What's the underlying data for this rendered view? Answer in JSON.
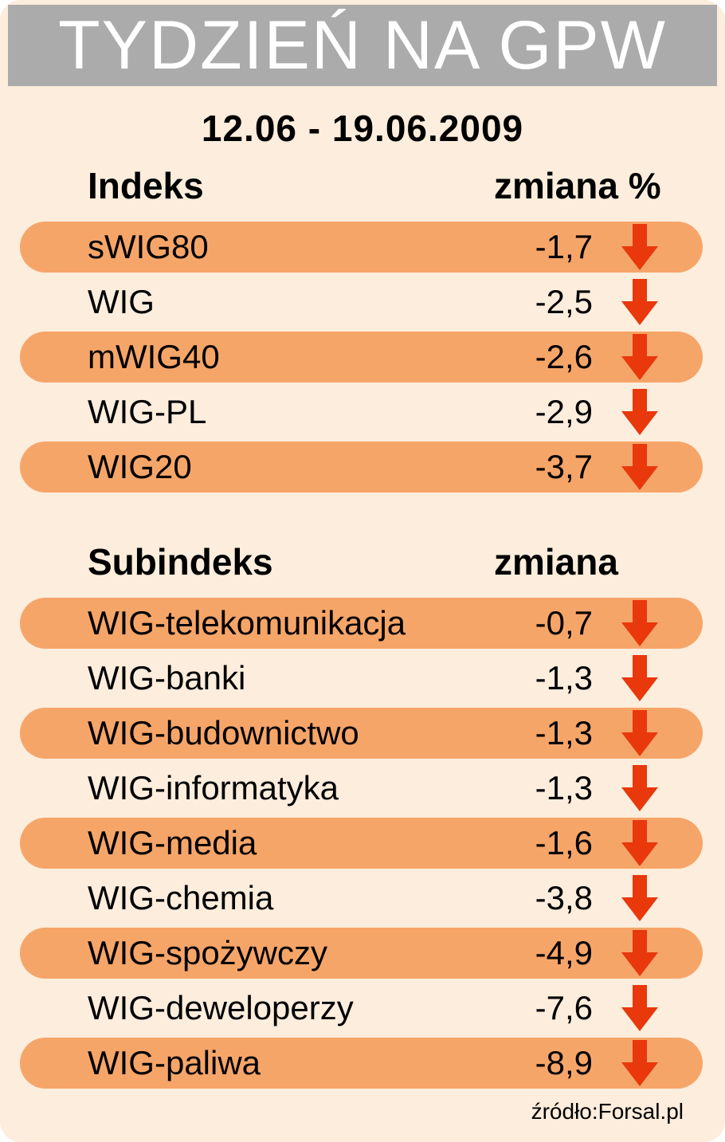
{
  "title": "TYDZIEŃ NA GPW",
  "date_range": "12.06 - 19.06.2009",
  "source": "źródło:Forsal.pl",
  "colors": {
    "background": "#FCEDDC",
    "pill": "#F6A569",
    "arrow": "#E8380C",
    "title_bar": "#ABABAB",
    "title_text": "#FFFFFF",
    "text": "#000000"
  },
  "sections": [
    {
      "header_left": "Indeks",
      "header_right": "zmiana %",
      "rows": [
        {
          "label": "sWIG80",
          "value": "-1,7",
          "pill": true
        },
        {
          "label": "WIG",
          "value": "-2,5",
          "pill": false
        },
        {
          "label": "mWIG40",
          "value": "-2,6",
          "pill": true
        },
        {
          "label": "WIG-PL",
          "value": "-2,9",
          "pill": false
        },
        {
          "label": "WIG20",
          "value": "-3,7",
          "pill": true
        }
      ]
    },
    {
      "header_left": "Subindeks",
      "header_right": "zmiana",
      "rows": [
        {
          "label": "WIG-telekomunikacja",
          "value": "-0,7",
          "pill": true
        },
        {
          "label": "WIG-banki",
          "value": "-1,3",
          "pill": false
        },
        {
          "label": "WIG-budownictwo",
          "value": "-1,3",
          "pill": true
        },
        {
          "label": "WIG-informatyka",
          "value": "-1,3",
          "pill": false
        },
        {
          "label": "WIG-media",
          "value": "-1,6",
          "pill": true
        },
        {
          "label": "WIG-chemia",
          "value": "-3,8",
          "pill": false
        },
        {
          "label": "WIG-spożywczy",
          "value": "-4,9",
          "pill": true
        },
        {
          "label": "WIG-deweloperzy",
          "value": "-7,6",
          "pill": false
        },
        {
          "label": "WIG-paliwa",
          "value": "-8,9",
          "pill": true
        }
      ]
    }
  ],
  "chart_data": {
    "type": "table",
    "title": "TYDZIEŃ NA GPW",
    "subtitle": "12.06 - 19.06.2009",
    "tables": [
      {
        "columns": [
          "Indeks",
          "zmiana %"
        ],
        "rows": [
          [
            "sWIG80",
            -1.7
          ],
          [
            "WIG",
            -2.5
          ],
          [
            "mWIG40",
            -2.6
          ],
          [
            "WIG-PL",
            -2.9
          ],
          [
            "WIG20",
            -3.7
          ]
        ]
      },
      {
        "columns": [
          "Subindeks",
          "zmiana"
        ],
        "rows": [
          [
            "WIG-telekomunikacja",
            -0.7
          ],
          [
            "WIG-banki",
            -1.3
          ],
          [
            "WIG-budownictwo",
            -1.3
          ],
          [
            "WIG-informatyka",
            -1.3
          ],
          [
            "WIG-media",
            -1.6
          ],
          [
            "WIG-chemia",
            -3.8
          ],
          [
            "WIG-spożywczy",
            -4.9
          ],
          [
            "WIG-deweloperzy",
            -7.6
          ],
          [
            "WIG-paliwa",
            -8.9
          ]
        ]
      }
    ],
    "annotations": [
      "all values negative, shown with red down arrows"
    ],
    "source": "źródło:Forsal.pl"
  }
}
